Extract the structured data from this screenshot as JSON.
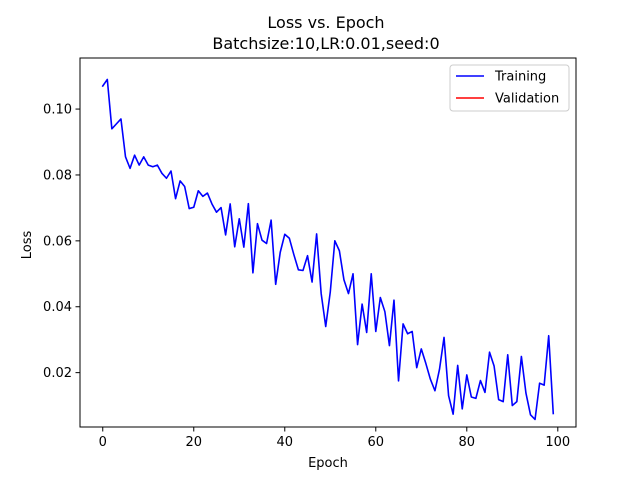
{
  "chart_data": {
    "type": "line",
    "title": "Loss vs. Epoch",
    "subtitle": "Batchsize:10,LR:0.01,seed:0",
    "xlabel": "Epoch",
    "ylabel": "Loss",
    "xlim": [
      -5,
      104
    ],
    "ylim": [
      0.0035,
      0.1155
    ],
    "x_ticks": [
      0,
      20,
      40,
      60,
      80,
      100
    ],
    "y_ticks": [
      0.02,
      0.04,
      0.06,
      0.08,
      0.1
    ],
    "y_tick_labels": [
      "0.02",
      "0.04",
      "0.06",
      "0.08",
      "0.10"
    ],
    "grid": false,
    "legend_position": "top-right",
    "series": [
      {
        "name": "Training",
        "color": "#0000ff",
        "x": [
          0,
          1,
          2,
          3,
          4,
          5,
          6,
          7,
          8,
          9,
          10,
          11,
          12,
          13,
          14,
          15,
          16,
          17,
          18,
          19,
          20,
          21,
          22,
          23,
          24,
          25,
          26,
          27,
          28,
          29,
          30,
          31,
          32,
          33,
          34,
          35,
          36,
          37,
          38,
          39,
          40,
          41,
          42,
          43,
          44,
          45,
          46,
          47,
          48,
          49,
          50,
          51,
          52,
          53,
          54,
          55,
          56,
          57,
          58,
          59,
          60,
          61,
          62,
          63,
          64,
          65,
          66,
          67,
          68,
          69,
          70,
          71,
          72,
          73,
          74,
          75,
          76,
          77,
          78,
          79,
          80,
          81,
          82,
          83,
          84,
          85,
          86,
          87,
          88,
          89,
          90,
          91,
          92,
          93,
          94,
          95,
          96,
          97,
          98,
          99
        ],
        "values": [
          0.107,
          0.109,
          0.094,
          0.0955,
          0.097,
          0.0855,
          0.082,
          0.086,
          0.083,
          0.0855,
          0.083,
          0.0825,
          0.083,
          0.0805,
          0.079,
          0.0812,
          0.0728,
          0.0782,
          0.0765,
          0.0698,
          0.0702,
          0.0752,
          0.0735,
          0.0745,
          0.0712,
          0.0687,
          0.0701,
          0.0618,
          0.0712,
          0.0582,
          0.0667,
          0.0581,
          0.0713,
          0.0503,
          0.0652,
          0.0602,
          0.0592,
          0.0663,
          0.0468,
          0.0565,
          0.062,
          0.0608,
          0.0558,
          0.0512,
          0.051,
          0.0555,
          0.0475,
          0.0621,
          0.044,
          0.034,
          0.0445,
          0.06,
          0.057,
          0.0482,
          0.044,
          0.05,
          0.0285,
          0.0408,
          0.0322,
          0.05,
          0.0325,
          0.0428,
          0.0385,
          0.0282,
          0.042,
          0.0175,
          0.0348,
          0.0318,
          0.0325,
          0.0215,
          0.0272,
          0.0228,
          0.018,
          0.0145,
          0.021,
          0.0307,
          0.013,
          0.0074,
          0.0222,
          0.009,
          0.0193,
          0.0126,
          0.0122,
          0.0176,
          0.014,
          0.0262,
          0.022,
          0.0118,
          0.0112,
          0.0254,
          0.01,
          0.0112,
          0.0249,
          0.0138,
          0.0072,
          0.0058,
          0.0168,
          0.0162,
          0.0312,
          0.0076
        ]
      },
      {
        "name": "Validation",
        "color": "#ff0000",
        "x": [],
        "values": []
      }
    ]
  }
}
